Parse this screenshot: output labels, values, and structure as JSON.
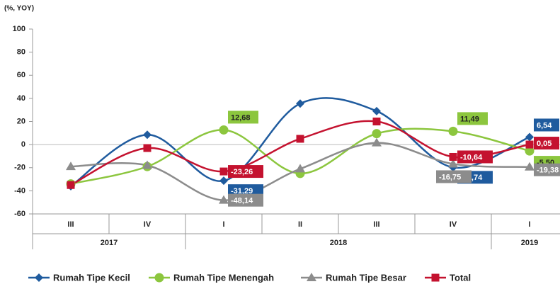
{
  "chart_data": {
    "type": "line",
    "y_unit_label": "(%, YOY)",
    "categories": [
      "III",
      "IV",
      "I",
      "II",
      "III",
      "IV",
      "I"
    ],
    "category_groups": [
      {
        "label": "2017",
        "span": 2
      },
      {
        "label": "2018",
        "span": 4
      },
      {
        "label": "2019",
        "span": 1
      }
    ],
    "ylim": [
      -60,
      100
    ],
    "yticks": [
      -60,
      -40,
      -20,
      0,
      20,
      40,
      60,
      80,
      100
    ],
    "grid": false,
    "smooth": true,
    "legend": "bottom",
    "series": [
      {
        "name": "Rumah Tipe Kecil",
        "color": "#1f5b9e",
        "marker": "diamond",
        "values": [
          -36,
          8.5,
          -31.29,
          35.5,
          29,
          -19.74,
          6.54
        ],
        "value_labels": [
          null,
          null,
          "-31,29",
          null,
          null,
          "-19,74",
          "6,54"
        ]
      },
      {
        "name": "Rumah Tipe Menengah",
        "color": "#8cc63e",
        "marker": "circle",
        "values": [
          -34,
          -19,
          12.68,
          -25,
          9.5,
          11.49,
          -5.5
        ],
        "value_labels": [
          null,
          null,
          "12,68",
          null,
          null,
          "11,49",
          "-5,50"
        ]
      },
      {
        "name": "Rumah Tipe Besar",
        "color": "#8c8c8c",
        "marker": "triangle",
        "values": [
          -19,
          -18,
          -48.14,
          -21,
          1.5,
          -16.75,
          -19.38
        ],
        "value_labels": [
          null,
          null,
          "-48,14",
          null,
          null,
          "-16,75",
          "-19,38"
        ]
      },
      {
        "name": "Total",
        "color": "#c4122f",
        "marker": "square",
        "values": [
          -35,
          -3,
          -23.26,
          5,
          20,
          -10.64,
          0.05
        ],
        "value_labels": [
          null,
          null,
          "-23,26",
          null,
          null,
          "-10,64",
          "0,05"
        ]
      }
    ]
  }
}
